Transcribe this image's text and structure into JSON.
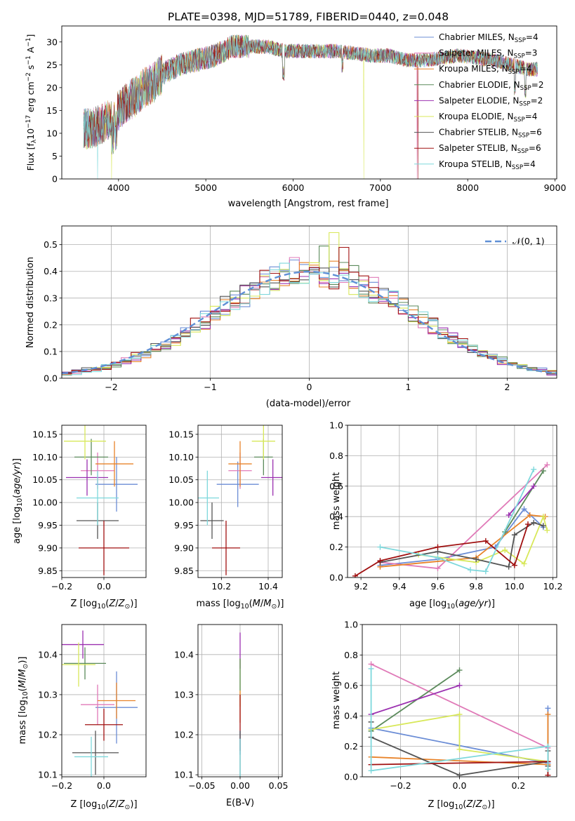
{
  "figure": {
    "title": "PLATE=0398, MJD=51789, FIBERID=0440, z=0.048"
  },
  "palette": {
    "Chabrier MILES": "#6b8dd6",
    "Salpeter MILES": "#e07ab8",
    "Kroupa MILES": "#e8832a",
    "Chabrier ELODIE": "#5b8a5b",
    "Salpeter ELODIE": "#9b30b0",
    "Kroupa ELODIE": "#d8e85a",
    "Chabrier STELIB": "#555555",
    "Salpeter STELIB": "#a01010",
    "Kroupa STELIB": "#7ed8dc"
  },
  "chart_data": [
    {
      "type": "line",
      "panel": "spectrum",
      "title": "PLATE=0398, MJD=51789, FIBERID=0440, z=0.048",
      "xlabel": "wavelength [Angstrom, rest frame]",
      "ylabel": "Flux [f_λ 10^-17 erg cm^-2 s^-1 A^-1]",
      "xlim": [
        3350,
        9020
      ],
      "ylim": [
        0,
        33.5
      ],
      "xticks": [
        4000,
        5000,
        6000,
        7000,
        8000,
        9000
      ],
      "yticks": [
        0,
        5,
        10,
        15,
        20,
        25,
        30
      ],
      "legend_placement": "right",
      "series": [
        {
          "name": "Chabrier MILES",
          "nssp": "4"
        },
        {
          "name": "Salpeter MILES",
          "nssp": "3"
        },
        {
          "name": "Kroupa MILES",
          "nssp": "4"
        },
        {
          "name": "Chabrier ELODIE",
          "nssp": "2"
        },
        {
          "name": "Salpeter ELODIE",
          "nssp": "2"
        },
        {
          "name": "Kroupa ELODIE",
          "nssp": "4"
        },
        {
          "name": "Chabrier STELIB",
          "nssp": "6"
        },
        {
          "name": "Salpeter STELIB",
          "nssp": "6"
        },
        {
          "name": "Kroupa STELIB",
          "nssp": "4"
        }
      ],
      "continuum": {
        "x": [
          3600,
          3700,
          3800,
          3900,
          4000,
          4100,
          4200,
          4300,
          4400,
          4500,
          4700,
          4900,
          5100,
          5300,
          5500,
          5700,
          5900,
          6100,
          6300,
          6500,
          6700,
          6900,
          7100,
          7300,
          7500,
          7700,
          7900,
          8100,
          8300,
          8500,
          8700,
          8800
        ],
        "y": [
          11,
          11,
          12,
          13,
          15,
          17,
          18,
          20,
          21,
          23,
          25,
          26,
          27,
          29,
          29,
          29,
          28,
          28,
          28,
          28,
          27.5,
          27,
          27,
          26,
          26,
          26.5,
          27,
          26.5,
          26,
          25,
          24,
          24
        ]
      }
    },
    {
      "type": "line",
      "panel": "residual-histogram",
      "xlabel": "(data-model)/error",
      "ylabel": "Normed distribution",
      "xlim": [
        -2.5,
        2.5
      ],
      "ylim": [
        0,
        0.57
      ],
      "xticks": [
        -2,
        -1,
        0,
        1,
        2
      ],
      "yticks": [
        0.0,
        0.1,
        0.2,
        0.3,
        0.4,
        0.5
      ],
      "grid": true,
      "legend_placement": "top-right",
      "reference_label": "𝒩(0, 1)",
      "bin_width": 0.1,
      "bin_start": -2.5,
      "reference_values": [
        0.0175,
        0.0224,
        0.0283,
        0.0355,
        0.044,
        0.054,
        0.0656,
        0.079,
        0.094,
        0.1109,
        0.1295,
        0.1497,
        0.1714,
        0.1942,
        0.2179,
        0.242,
        0.2661,
        0.2897,
        0.3123,
        0.3332,
        0.3521,
        0.3683,
        0.3814,
        0.391,
        0.397,
        0.3989,
        0.397,
        0.391,
        0.3814,
        0.3683,
        0.3521,
        0.3332,
        0.3123,
        0.2897,
        0.2661,
        0.242,
        0.2179,
        0.1942,
        0.1714,
        0.1497,
        0.1295,
        0.1109,
        0.094,
        0.079,
        0.0656,
        0.054,
        0.044,
        0.0355,
        0.0283,
        0.0224
      ]
    },
    {
      "type": "scatter",
      "panel": "age-vs-metallicity",
      "xlabel": "Z [log10(Z/Z☉)]",
      "ylabel": "age [log10(age/yr)]",
      "xlim": [
        -0.2,
        0.2
      ],
      "ylim": [
        9.835,
        10.17
      ],
      "xticks": [
        -0.2,
        0.0
      ],
      "yticks": [
        9.85,
        9.9,
        9.95,
        10.0,
        10.05,
        10.1,
        10.15
      ],
      "points": [
        {
          "series": "Chabrier MILES",
          "x": 0.06,
          "y": 10.04,
          "xerr": 0.1,
          "yerr": 0.06
        },
        {
          "series": "Salpeter MILES",
          "x": -0.03,
          "y": 10.07,
          "xerr": 0.08,
          "yerr": 0.04
        },
        {
          "series": "Kroupa MILES",
          "x": 0.05,
          "y": 10.085,
          "xerr": 0.09,
          "yerr": 0.05
        },
        {
          "series": "Chabrier ELODIE",
          "x": -0.06,
          "y": 10.1,
          "xerr": 0.08,
          "yerr": 0.04
        },
        {
          "series": "Salpeter ELODIE",
          "x": -0.08,
          "y": 10.055,
          "xerr": 0.1,
          "yerr": 0.04
        },
        {
          "series": "Kroupa ELODIE",
          "x": -0.09,
          "y": 10.135,
          "xerr": 0.1,
          "yerr": 0.04
        },
        {
          "series": "Chabrier STELIB",
          "x": -0.03,
          "y": 9.96,
          "xerr": 0.1,
          "yerr": 0.04
        },
        {
          "series": "Salpeter STELIB",
          "x": 0.0,
          "y": 9.9,
          "xerr": 0.12,
          "yerr": 0.06
        },
        {
          "series": "Kroupa STELIB",
          "x": -0.03,
          "y": 10.01,
          "xerr": 0.1,
          "yerr": 0.06
        }
      ]
    },
    {
      "type": "scatter",
      "panel": "age-vs-mass",
      "xlabel": "mass [log10(M/M☉)]",
      "xlim": [
        10.1,
        10.46
      ],
      "ylim": [
        9.835,
        10.17
      ],
      "xticks": [
        10.2,
        10.4
      ],
      "yticks": [
        9.85,
        9.9,
        9.95,
        10.0,
        10.05,
        10.1,
        10.15
      ],
      "points": [
        {
          "series": "Chabrier MILES",
          "x": 10.27,
          "y": 10.04,
          "xerr": 0.09,
          "yerr": 0.05
        },
        {
          "series": "Salpeter MILES",
          "x": 10.28,
          "y": 10.07,
          "xerr": 0.05,
          "yerr": 0.04
        },
        {
          "series": "Kroupa MILES",
          "x": 10.28,
          "y": 10.085,
          "xerr": 0.05,
          "yerr": 0.05
        },
        {
          "series": "Chabrier ELODIE",
          "x": 10.38,
          "y": 10.1,
          "xerr": 0.04,
          "yerr": 0.04
        },
        {
          "series": "Salpeter ELODIE",
          "x": 10.42,
          "y": 10.055,
          "xerr": 0.05,
          "yerr": 0.04
        },
        {
          "series": "Kroupa ELODIE",
          "x": 10.38,
          "y": 10.135,
          "xerr": 0.05,
          "yerr": 0.04
        },
        {
          "series": "Chabrier STELIB",
          "x": 10.16,
          "y": 9.96,
          "xerr": 0.05,
          "yerr": 0.04
        },
        {
          "series": "Salpeter STELIB",
          "x": 10.22,
          "y": 9.9,
          "xerr": 0.06,
          "yerr": 0.06
        },
        {
          "series": "Kroupa STELIB",
          "x": 10.14,
          "y": 10.01,
          "xerr": 0.05,
          "yerr": 0.06
        }
      ]
    },
    {
      "type": "line",
      "panel": "mass-weight-vs-age",
      "xlabel": "age [log10(age/yr)]",
      "ylabel": "mass weight",
      "xlim": [
        9.13,
        10.22
      ],
      "ylim": [
        0,
        1
      ],
      "xticks": [
        9.2,
        9.4,
        9.6,
        9.8,
        10.0,
        10.2
      ],
      "yticks": [
        0.0,
        0.2,
        0.4,
        0.6,
        0.8,
        1.0
      ],
      "grid": true,
      "series": [
        {
          "name": "Chabrier MILES",
          "x": [
            9.3,
            9.6,
            9.9,
            10.05,
            10.15
          ],
          "y": [
            0.08,
            0.12,
            0.2,
            0.45,
            0.33
          ]
        },
        {
          "name": "Salpeter MILES",
          "x": [
            9.3,
            9.6,
            10.17
          ],
          "y": [
            0.1,
            0.06,
            0.74
          ]
        },
        {
          "name": "Kroupa MILES",
          "x": [
            9.3,
            9.8,
            10.08,
            10.16
          ],
          "y": [
            0.07,
            0.13,
            0.41,
            0.4
          ]
        },
        {
          "name": "Chabrier ELODIE",
          "x": [
            9.95,
            10.15
          ],
          "y": [
            0.3,
            0.7
          ]
        },
        {
          "name": "Salpeter ELODIE",
          "x": [
            9.97,
            10.1
          ],
          "y": [
            0.41,
            0.6
          ]
        },
        {
          "name": "Kroupa ELODIE",
          "x": [
            9.5,
            9.8,
            9.95,
            10.05,
            10.15,
            10.17
          ],
          "y": [
            0.15,
            0.1,
            0.18,
            0.09,
            0.4,
            0.31
          ]
        },
        {
          "name": "Chabrier STELIB",
          "x": [
            9.3,
            9.6,
            9.8,
            9.97,
            10.0,
            10.1,
            10.15
          ],
          "y": [
            0.1,
            0.17,
            0.12,
            0.07,
            0.28,
            0.36,
            0.34
          ]
        },
        {
          "name": "Salpeter STELIB",
          "x": [
            9.17,
            9.3,
            9.6,
            9.85,
            10.0,
            10.07
          ],
          "y": [
            0.01,
            0.11,
            0.2,
            0.24,
            0.08,
            0.35
          ]
        },
        {
          "name": "Kroupa STELIB",
          "x": [
            9.3,
            9.6,
            9.77,
            9.85,
            10.1
          ],
          "y": [
            0.2,
            0.13,
            0.05,
            0.04,
            0.71
          ]
        }
      ]
    },
    {
      "type": "scatter",
      "panel": "mass-vs-metallicity",
      "xlabel": "Z [log10(Z/Z☉)]",
      "ylabel": "mass [log10(M/M☉)]",
      "xlim": [
        -0.2,
        0.2
      ],
      "ylim": [
        10.095,
        10.475
      ],
      "xticks": [
        -0.2,
        0.0
      ],
      "yticks": [
        10.1,
        10.2,
        10.3,
        10.4
      ],
      "points": [
        {
          "series": "Chabrier MILES",
          "x": 0.06,
          "y": 10.268,
          "xerr": 0.1,
          "yerr": 0.09
        },
        {
          "series": "Salpeter MILES",
          "x": -0.03,
          "y": 10.275,
          "xerr": 0.08,
          "yerr": 0.05
        },
        {
          "series": "Kroupa MILES",
          "x": 0.06,
          "y": 10.285,
          "xerr": 0.09,
          "yerr": 0.045
        },
        {
          "series": "Chabrier ELODIE",
          "x": -0.09,
          "y": 10.378,
          "xerr": 0.1,
          "yerr": 0.04
        },
        {
          "series": "Salpeter ELODIE",
          "x": -0.1,
          "y": 10.425,
          "xerr": 0.1,
          "yerr": 0.035
        },
        {
          "series": "Kroupa ELODIE",
          "x": -0.12,
          "y": 10.375,
          "xerr": 0.08,
          "yerr": 0.055
        },
        {
          "series": "Chabrier STELIB",
          "x": -0.04,
          "y": 10.155,
          "xerr": 0.11,
          "yerr": 0.055
        },
        {
          "series": "Salpeter STELIB",
          "x": 0.0,
          "y": 10.225,
          "xerr": 0.09,
          "yerr": 0.04
        },
        {
          "series": "Kroupa STELIB",
          "x": -0.06,
          "y": 10.145,
          "xerr": 0.08,
          "yerr": 0.05
        }
      ]
    },
    {
      "type": "scatter",
      "panel": "mass-vs-extinction",
      "xlabel": "E(B-V)",
      "xlim": [
        -0.055,
        0.055
      ],
      "ylim": [
        10.095,
        10.475
      ],
      "xticks": [
        -0.05,
        0.0,
        0.05
      ],
      "yticks": [
        10.1,
        10.2,
        10.3,
        10.4
      ],
      "points": [
        {
          "series": "Salpeter ELODIE",
          "x": 0.0,
          "y": 10.41,
          "yerr": 0.045
        },
        {
          "series": "Kroupa ELODIE",
          "x": 0.0,
          "y": 10.33,
          "yerr": 0.06
        },
        {
          "series": "Chabrier ELODIE",
          "x": 0.0,
          "y": 10.35,
          "yerr": 0.04
        },
        {
          "series": "Kroupa MILES",
          "x": 0.0,
          "y": 10.27,
          "yerr": 0.04
        },
        {
          "series": "Salpeter STELIB",
          "x": 0.0,
          "y": 10.23,
          "yerr": 0.07
        },
        {
          "series": "Chabrier MILES",
          "x": 0.0,
          "y": 10.18,
          "yerr": 0.03
        },
        {
          "series": "Chabrier STELIB",
          "x": 0.0,
          "y": 10.15,
          "yerr": 0.06
        },
        {
          "series": "Kroupa STELIB",
          "x": 0.0,
          "y": 10.14,
          "yerr": 0.05
        }
      ]
    },
    {
      "type": "line",
      "panel": "mass-weight-vs-metallicity",
      "xlabel": "Z [log10(Z/Z☉)]",
      "ylabel": "mass weight",
      "xlim": [
        -0.33,
        0.33
      ],
      "ylim": [
        0,
        1
      ],
      "xticks": [
        -0.2,
        0.0,
        0.2
      ],
      "yticks": [
        0.0,
        0.2,
        0.4,
        0.6,
        0.8,
        1.0
      ],
      "grid": true,
      "series": [
        {
          "name": "Chabrier MILES",
          "x": [
            -0.3,
            0.3,
            0.3
          ],
          "y": [
            0.32,
            0.09,
            0.45
          ]
        },
        {
          "name": "Salpeter MILES",
          "x": [
            -0.3,
            0.3,
            0.3
          ],
          "y": [
            0.74,
            0.19,
            0.1
          ]
        },
        {
          "name": "Kroupa MILES",
          "x": [
            -0.3,
            0.3,
            0.3
          ],
          "y": [
            0.13,
            0.08,
            0.41
          ]
        },
        {
          "name": "Chabrier ELODIE",
          "x": [
            -0.3,
            0.0
          ],
          "y": [
            0.3,
            0.7
          ]
        },
        {
          "name": "Salpeter ELODIE",
          "x": [
            -0.3,
            0.0
          ],
          "y": [
            0.41,
            0.6
          ]
        },
        {
          "name": "Kroupa ELODIE",
          "x": [
            -0.3,
            0.0,
            0.0,
            0.3
          ],
          "y": [
            0.31,
            0.41,
            0.18,
            0.1
          ]
        },
        {
          "name": "Chabrier STELIB",
          "x": [
            -0.3,
            -0.3,
            0.0,
            0.3,
            0.3,
            0.3
          ],
          "y": [
            0.36,
            0.26,
            0.01,
            0.1,
            0.07,
            0.17
          ]
        },
        {
          "name": "Salpeter STELIB",
          "x": [
            -0.3,
            0.3,
            0.3
          ],
          "y": [
            0.08,
            0.1,
            0.01
          ]
        },
        {
          "name": "Kroupa STELIB",
          "x": [
            -0.3,
            -0.3,
            0.3,
            0.3
          ],
          "y": [
            0.71,
            0.04,
            0.2,
            0.05
          ]
        }
      ]
    }
  ]
}
